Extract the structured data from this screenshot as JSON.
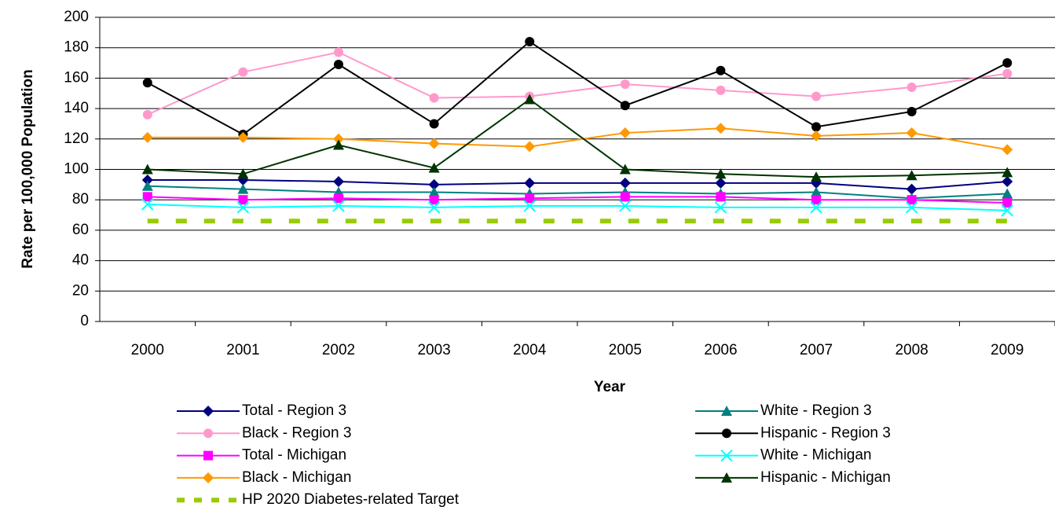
{
  "chart_data": {
    "type": "line",
    "x_label": "Year",
    "y_label": "Rate per 100,000 Population",
    "categories": [
      "2000",
      "2001",
      "2002",
      "2003",
      "2004",
      "2005",
      "2006",
      "2007",
      "2008",
      "2009"
    ],
    "ylim": [
      0,
      200
    ],
    "yticks": [
      0,
      20,
      40,
      60,
      80,
      100,
      120,
      140,
      160,
      180,
      200
    ],
    "grid": true,
    "series": [
      {
        "name": "Total - Region 3",
        "color": "#000080",
        "marker": "diamond",
        "values": [
          93,
          93,
          92,
          90,
          91,
          91,
          91,
          91,
          87,
          92
        ]
      },
      {
        "name": "White - Region 3",
        "color": "#008080",
        "marker": "triangle",
        "values": [
          89,
          87,
          85,
          85,
          84,
          85,
          84,
          85,
          81,
          84
        ]
      },
      {
        "name": "Black - Region 3",
        "color": "#ff99cc",
        "marker": "circle",
        "values": [
          136,
          164,
          177,
          147,
          148,
          156,
          152,
          148,
          154,
          163
        ]
      },
      {
        "name": "Hispanic - Region 3",
        "color": "#000000",
        "marker": "circle",
        "values": [
          157,
          123,
          169,
          130,
          184,
          142,
          165,
          128,
          138,
          170
        ]
      },
      {
        "name": "Total - Michigan",
        "color": "#ff00ff",
        "marker": "square",
        "values": [
          82,
          80,
          81,
          80,
          81,
          82,
          82,
          80,
          80,
          78
        ]
      },
      {
        "name": "White - Michigan",
        "color": "#00ffff",
        "marker": "x",
        "values": [
          77,
          75,
          76,
          75,
          76,
          76,
          75,
          75,
          75,
          73
        ]
      },
      {
        "name": "Black - Michigan",
        "color": "#ff9900",
        "marker": "diamond",
        "values": [
          121,
          121,
          120,
          117,
          115,
          124,
          127,
          122,
          124,
          113
        ]
      },
      {
        "name": "Hispanic - Michigan",
        "color": "#003300",
        "marker": "triangle",
        "values": [
          100,
          97,
          116,
          101,
          146,
          100,
          97,
          95,
          96,
          98
        ]
      },
      {
        "name": "HP 2020 Diabetes-related Target",
        "color": "#99cc00",
        "marker": "none",
        "dash": true,
        "values": [
          66,
          66,
          66,
          66,
          66,
          66,
          66,
          66,
          66,
          66
        ]
      }
    ]
  }
}
